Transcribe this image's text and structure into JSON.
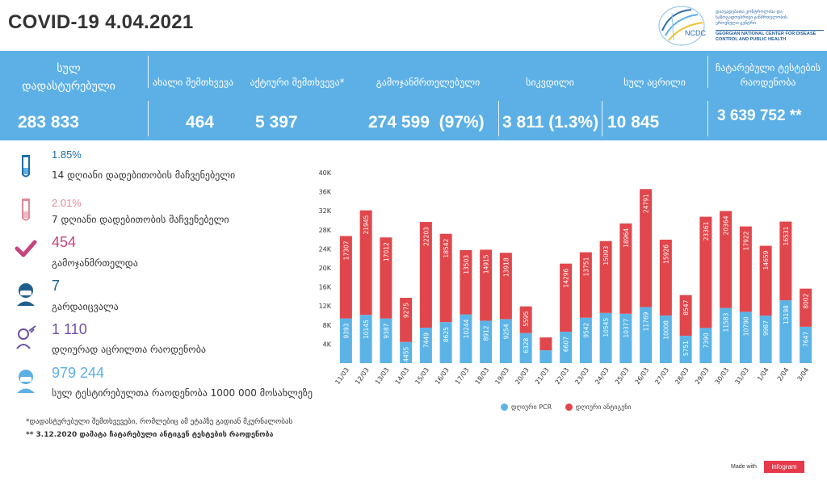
{
  "header": {
    "title": "COVID-19 4.04.2021"
  },
  "logo": {
    "name": "NCDC",
    "geo_lines": [
      "დაავადებათა კონტროლისა და",
      "საზოგადოებრივი ჯანმრთელობის",
      "ეროვნული ცენტრი"
    ],
    "en_lines": [
      "GEORGIAN NATIONAL CENTER FOR DISEASE",
      "CONTROL AND PUBLIC HEALTH"
    ]
  },
  "stats": {
    "total": {
      "label_line1": "სულ",
      "label_line2": "დადასტურებული",
      "value": "283 833"
    },
    "new_cases": {
      "label": "ახალი შემთხვევა",
      "value": "464"
    },
    "active": {
      "label": "აქტიური შემთხვევა*",
      "value": "5 397"
    },
    "recovered": {
      "label": "გამოჯანმრთელებული",
      "value": "274 599  (97%)"
    },
    "deaths": {
      "label": "სიკვდილი",
      "value": "3 811 (1.3%)"
    },
    "vaccinated": {
      "label": "სულ აცრილი",
      "value": "10 845"
    },
    "tests": {
      "label_line1": "ჩატარებული  ტესტების",
      "label_line2": "რაოდენობა",
      "value": "3 639 752 **"
    }
  },
  "side": {
    "rate14": {
      "value": "1.85%",
      "label": "14  დღიანი დადებითობის მაჩვენებელი"
    },
    "rate7": {
      "value": "2.01%",
      "label": "7 დღიანი დადებითობის მაჩვენებელი"
    },
    "recovered_today": {
      "value": "454",
      "label": "გამოჯანმრთელდა"
    },
    "died_today": {
      "value": "7",
      "label": "გარდაიცვალა"
    },
    "vaccinated_today": {
      "value": "1 110",
      "label": "დღიურად აცრილთა რაოდენობა"
    },
    "tests_per_million": {
      "value": "979 244",
      "label": "სულ ტესტირებულთა რაოდენობა 1000 000 მოსახლეზე"
    }
  },
  "footnotes": {
    "note1": "*დადასტურებული შემთხვევები, რომლებიც ამ ეტაპზე გადიან მკურნალობას",
    "note2": "** 3.12.2020 დამატა ჩატარებული ანტიგენ ტესტების რაოდენობა"
  },
  "branding": {
    "made_with": "Made with",
    "infogram": "infogram"
  },
  "colors": {
    "band": "#5cb0e6",
    "pcr": "#5cb4e6",
    "antigen": "#e0474c",
    "rate14": "#1e6fa8",
    "rate7": "#e08a99",
    "recovered": "#c8447f",
    "died": "#1e5f8e",
    "vaccinated": "#6e51a8",
    "tests": "#5cb0e6"
  },
  "chart_data": {
    "type": "bar",
    "stacked": true,
    "categories": [
      "11/03",
      "12/03",
      "13/03",
      "14/03",
      "15/03",
      "16/03",
      "17/03",
      "18/03",
      "19/03",
      "20/03",
      "21/03",
      "22/03",
      "23/03",
      "24/03",
      "25/03",
      "26/03",
      "27/03",
      "28/03",
      "29/03",
      "30/03",
      "31/03",
      "1/04",
      "2/04",
      "3/04"
    ],
    "series": [
      {
        "name": "დღიური PCR",
        "color": "#5cb4e6",
        "values": [
          9393,
          10145,
          9387,
          4455,
          7449,
          8625,
          10244,
          8912,
          9254,
          6328,
          2700,
          6607,
          9542,
          10545,
          10377,
          11769,
          10008,
          5751,
          7390,
          11583,
          10790,
          9987,
          13198,
          7647
        ],
        "labels": [
          "9393",
          "10145",
          "9387",
          "4455",
          "7449",
          "8625",
          "10244",
          "8912",
          "9254",
          "6328",
          "",
          "6607",
          "9542",
          "10545",
          "10377",
          "11769",
          "10008",
          "5751",
          "7390",
          "11583",
          "10790",
          "9987",
          "13198",
          "7647"
        ]
      },
      {
        "name": "დღიური ანტიგენი",
        "color": "#e0474c",
        "values": [
          17307,
          21945,
          17012,
          9275,
          22203,
          18542,
          13503,
          14915,
          13918,
          5595,
          2700,
          14296,
          13751,
          15093,
          18964,
          24791,
          15926,
          8547,
          23361,
          20364,
          17922,
          14659,
          16531,
          8002
        ],
        "labels": [
          "17307",
          "21945",
          "17012",
          "9275",
          "22203",
          "18542",
          "13503",
          "14915",
          "13918",
          "5595",
          "",
          "14296",
          "13751",
          "15093",
          "18964",
          "24791",
          "15926",
          "8547",
          "23361",
          "20364",
          "17922",
          "14659",
          "16531",
          "8002"
        ]
      }
    ],
    "yticks": [
      "",
      "4K",
      "8K",
      "12K",
      "16K",
      "20K",
      "24K",
      "28K",
      "32K",
      "36K",
      "40K"
    ],
    "ylim": [
      0,
      40000
    ],
    "grid": false,
    "legend": "bottom"
  }
}
